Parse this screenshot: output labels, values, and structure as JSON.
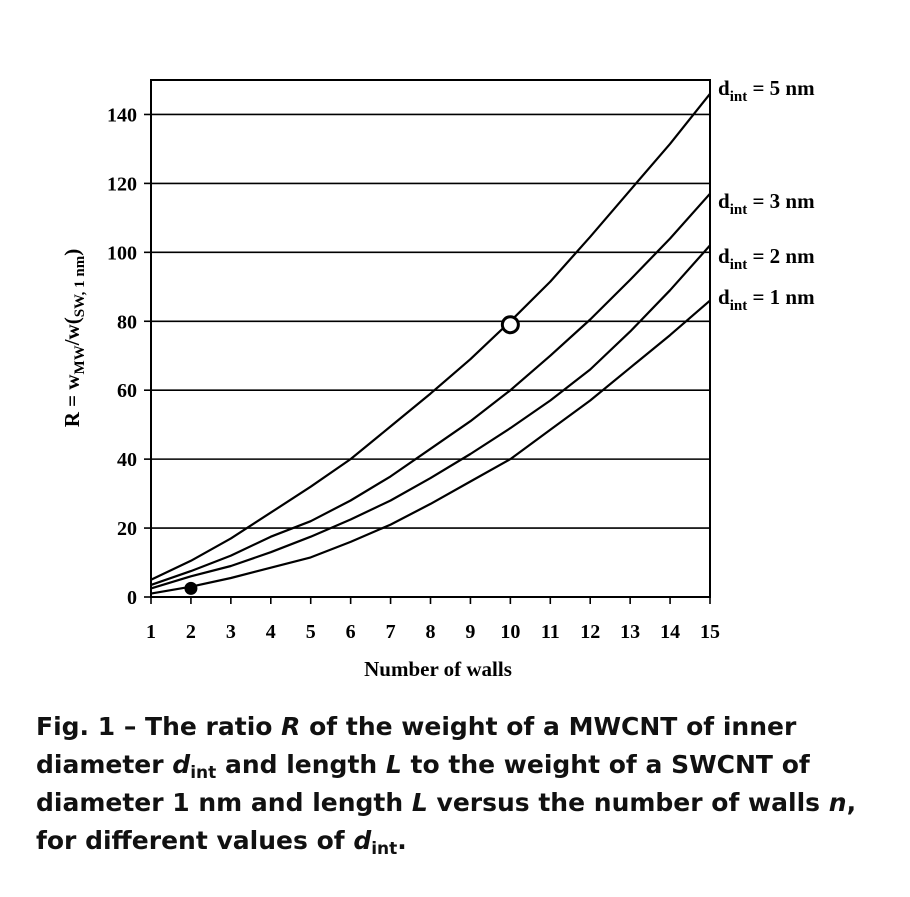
{
  "chart_data": {
    "type": "line",
    "xlabel": "Number of walls",
    "ylabel": {
      "base": "R = w",
      "sub1": "MW",
      "mid": "/w(",
      "sub2": "SW, 1 nm",
      "end": ")"
    },
    "xlim": [
      1,
      15
    ],
    "ylim": [
      0,
      150
    ],
    "xticks": [
      1,
      2,
      3,
      4,
      5,
      6,
      7,
      8,
      9,
      10,
      11,
      12,
      13,
      14,
      15
    ],
    "yticks": [
      0,
      20,
      40,
      60,
      80,
      100,
      120,
      140
    ],
    "grid": "horizontal",
    "x": [
      1,
      2,
      3,
      4,
      5,
      6,
      7,
      8,
      9,
      10,
      11,
      12,
      13,
      14,
      15
    ],
    "series": [
      {
        "name": "d_int = 5 nm",
        "label_main": "d",
        "label_sub": "int",
        "label_rest": " = 5 nm",
        "values": [
          5,
          10.5,
          17,
          24.5,
          32,
          40,
          49.5,
          59,
          69,
          80,
          91.5,
          104.5,
          118,
          131.5,
          146
        ]
      },
      {
        "name": "d_int = 3 nm",
        "label_main": "d",
        "label_sub": "int",
        "label_rest": " = 3 nm",
        "values": [
          3.5,
          7.5,
          12,
          17.5,
          22,
          28,
          35,
          43,
          51,
          60,
          70,
          80.5,
          92,
          104,
          117
        ]
      },
      {
        "name": "d_int = 2 nm",
        "label_main": "d",
        "label_sub": "int",
        "label_rest": " = 2 nm",
        "values": [
          2.5,
          6,
          9,
          13,
          17.5,
          22.5,
          28,
          34.5,
          41.5,
          49,
          57,
          66,
          77,
          89,
          102
        ]
      },
      {
        "name": "d_int = 1 nm",
        "label_main": "d",
        "label_sub": "int",
        "label_rest": " = 1 nm",
        "values": [
          1,
          3,
          5.5,
          8.5,
          11.5,
          16,
          21,
          27,
          33.5,
          40,
          48.5,
          57,
          66.5,
          76,
          86
        ]
      }
    ],
    "markers": [
      {
        "x": 2,
        "y": 2.5,
        "style": "filled"
      },
      {
        "x": 10,
        "y": 79,
        "style": "open"
      }
    ]
  },
  "caption": {
    "p1": "Fig. 1 – The ratio ",
    "R": "R",
    "p2": " of the weight of a MWCNT of inner diameter ",
    "d": "d",
    "int": "int",
    "p3": " and length ",
    "L": "L",
    "p4": " to the weight of a SWCNT of diameter 1 nm and length ",
    "L2": "L",
    "p5": " versus the number of walls ",
    "n": "n",
    "p6": ", for different values of ",
    "d2": "d",
    "int2": "int",
    "p7": "."
  }
}
